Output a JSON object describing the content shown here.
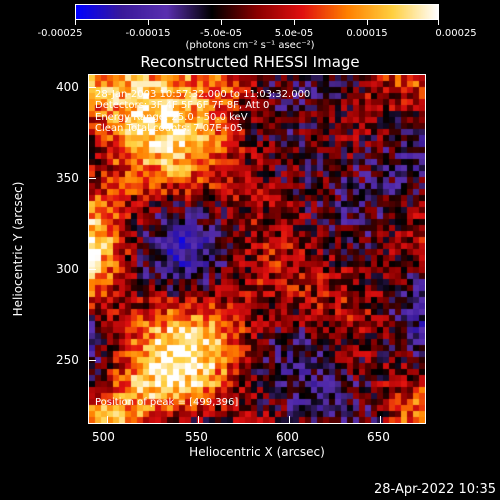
{
  "colorbar": {
    "ticks": [
      "-0.00025",
      "-0.00015",
      "-5.0e-05",
      "5.0e-05",
      "0.00015",
      "0.00025"
    ],
    "units": "(photons cm⁻² s⁻¹ asec⁻²)"
  },
  "title": "Reconstructed RHESSI Image",
  "axes": {
    "xlabel": "Heliocentric X (arcsec)",
    "ylabel": "Heliocentric Y (arcsec)",
    "xticks": [
      "500",
      "550",
      "600",
      "650"
    ],
    "yticks": [
      "400",
      "350",
      "300",
      "250"
    ]
  },
  "annotations": {
    "time": "28-Jan-2003 10:57:32.000 to 11:03:32.000",
    "detectors": "Detectors: 3F 4F 5F 6F 7F 8F, Att 0",
    "energy": "Energy Range: 25.0 - 50.0 keV",
    "clean": "Clean     Total counts: 7.07E+05",
    "peak": "Position of peak = [499,396]"
  },
  "footer": "28-Apr-2022 10:35",
  "colors": {
    "colormap": [
      "#0000ff",
      "#3a1a9a",
      "#5a30b0",
      "#000000",
      "#8a0000",
      "#e01010",
      "#ff8000",
      "#ffd040",
      "#ffffff"
    ]
  }
}
